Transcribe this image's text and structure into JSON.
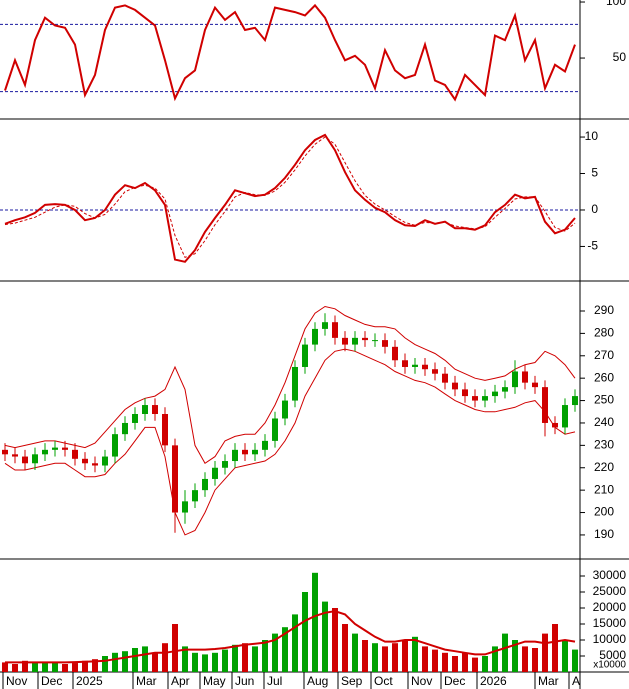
{
  "chart_data": [
    {
      "type": "line",
      "ylim": [
        -3.5,
        101.8
      ],
      "yticks": [
        50,
        100
      ],
      "levels": [
        80,
        20
      ],
      "level_color": "#1a1aa0",
      "series": [
        {
          "color": "#d00000",
          "values": [
            21,
            48,
            26,
            66,
            86,
            79,
            77,
            62,
            17,
            35,
            75,
            95,
            97,
            93,
            86,
            79,
            48,
            14,
            32,
            39,
            75,
            95,
            84,
            91,
            75,
            77,
            66,
            95,
            93,
            91,
            88,
            97,
            86,
            66,
            48,
            52,
            44,
            23,
            57,
            39,
            32,
            35,
            62,
            30,
            26,
            13,
            35,
            26,
            17,
            70,
            66,
            88,
            48,
            66,
            23,
            44,
            38,
            62
          ]
        }
      ]
    },
    {
      "type": "line",
      "ylim": [
        -9.6,
        12.2
      ],
      "yticks": [
        -5,
        0,
        5,
        10
      ],
      "levels": [
        0
      ],
      "level_color": "#1a1aa0",
      "series": [
        {
          "color": "#d00000",
          "values": [
            -1.9,
            -1.4,
            -1.0,
            -0.4,
            0.7,
            0.8,
            0.7,
            0,
            -1.4,
            -1.1,
            0,
            2.1,
            3.4,
            3.0,
            3.7,
            2.7,
            0.7,
            -6.8,
            -7.1,
            -5.5,
            -3.0,
            -1.1,
            0.7,
            2.7,
            2.3,
            1.9,
            2.1,
            3.0,
            4.4,
            6.2,
            8.2,
            9.6,
            10.3,
            8.2,
            5.2,
            2.7,
            1.4,
            0.3,
            -0.3,
            -1.4,
            -2.1,
            -2.2,
            -1.4,
            -1.9,
            -1.6,
            -2.5,
            -2.5,
            -2.7,
            -2.1,
            -0.3,
            0.7,
            2.1,
            1.6,
            1.8,
            -1.6,
            -3.2,
            -2.7,
            -1.1
          ]
        },
        {
          "color": "#d00000",
          "dashed": true,
          "values": [
            -2.0,
            -1.8,
            -1.4,
            -1.0,
            -0.3,
            0.4,
            0.7,
            0.5,
            -0.5,
            -1.1,
            -0.6,
            0.8,
            2.5,
            3.1,
            3.4,
            3.0,
            1.5,
            -3.5,
            -6.5,
            -6.0,
            -4.2,
            -2.0,
            -0.2,
            1.8,
            2.4,
            2.1,
            2.0,
            2.6,
            3.8,
            5.5,
            7.4,
            9.0,
            10.0,
            9.0,
            6.5,
            4.0,
            2.0,
            0.8,
            0.0,
            -0.9,
            -1.7,
            -2.1,
            -1.7,
            -1.8,
            -1.7,
            -2.2,
            -2.4,
            -2.6,
            -2.3,
            -1.0,
            0.2,
            1.5,
            1.8,
            1.8,
            -0.2,
            -2.4,
            -2.9,
            -1.8
          ]
        }
      ]
    },
    {
      "type": "candlestick",
      "ylim": [
        179.7,
        302.5
      ],
      "yticks": [
        190,
        200,
        210,
        220,
        230,
        240,
        250,
        260,
        270,
        280,
        290
      ],
      "up_color": "#00a000",
      "down_color": "#d00000",
      "open": [
        228,
        226,
        225,
        222,
        226,
        228,
        229,
        228,
        224,
        222,
        221,
        225,
        235,
        240,
        244,
        248,
        244,
        230,
        200,
        205,
        210,
        215,
        220,
        223,
        228,
        226,
        228,
        232,
        242,
        250,
        265,
        275,
        282,
        285,
        278,
        275,
        278,
        277,
        277,
        274,
        268,
        265,
        266,
        264,
        262,
        258,
        255,
        252,
        250,
        252,
        254,
        256,
        263,
        258,
        256,
        240,
        238,
        248
      ],
      "high": [
        231,
        229,
        228,
        229,
        231,
        232,
        232,
        231,
        227,
        225,
        228,
        238,
        243,
        247,
        251,
        251,
        247,
        233,
        210,
        213,
        218,
        223,
        226,
        231,
        231,
        231,
        235,
        245,
        253,
        268,
        278,
        285,
        289,
        288,
        281,
        281,
        281,
        280,
        280,
        277,
        271,
        269,
        269,
        267,
        265,
        261,
        258,
        255,
        255,
        257,
        259,
        268,
        266,
        261,
        259,
        243,
        251,
        255
      ],
      "low": [
        223,
        222,
        219,
        219,
        223,
        225,
        225,
        221,
        219,
        218,
        218,
        222,
        232,
        237,
        241,
        241,
        227,
        191,
        195,
        202,
        207,
        212,
        217,
        220,
        223,
        223,
        225,
        229,
        239,
        247,
        262,
        272,
        279,
        275,
        272,
        272,
        274,
        274,
        271,
        265,
        262,
        262,
        261,
        259,
        255,
        252,
        249,
        247,
        247,
        249,
        251,
        253,
        255,
        253,
        234,
        235,
        235,
        245
      ],
      "close": [
        226,
        225,
        222,
        226,
        228,
        229,
        228,
        224,
        222,
        221,
        225,
        235,
        240,
        244,
        248,
        244,
        230,
        200,
        205,
        210,
        215,
        220,
        223,
        228,
        226,
        228,
        232,
        242,
        250,
        265,
        275,
        282,
        285,
        278,
        275,
        278,
        277,
        277,
        274,
        268,
        265,
        266,
        264,
        262,
        258,
        255,
        252,
        250,
        252,
        254,
        256,
        263,
        258,
        256,
        240,
        238,
        248,
        252
      ],
      "bands": {
        "color": "#d00000",
        "upper": [
          230,
          229,
          230,
          231,
          232,
          232,
          231,
          230,
          229,
          231,
          236,
          241,
          246,
          249,
          251,
          252,
          255,
          265,
          255,
          230,
          222,
          225,
          232,
          234,
          235,
          235,
          240,
          248,
          258,
          270,
          282,
          289,
          292,
          291,
          288,
          286,
          284,
          283,
          283,
          282,
          278,
          275,
          273,
          271,
          268,
          264,
          262,
          260,
          259,
          260,
          261,
          264,
          266,
          267,
          272,
          270,
          266,
          260
        ],
        "lower": [
          222,
          219,
          219,
          220,
          221,
          222,
          222,
          219,
          216,
          216,
          217,
          222,
          226,
          232,
          238,
          238,
          225,
          200,
          190,
          192,
          200,
          210,
          215,
          220,
          221,
          222,
          223,
          226,
          232,
          240,
          252,
          260,
          268,
          272,
          273,
          272,
          270,
          268,
          266,
          263,
          261,
          259,
          258,
          256,
          253,
          250,
          248,
          246,
          245,
          245,
          246,
          247,
          249,
          250,
          245,
          238,
          235,
          236
        ]
      }
    },
    {
      "type": "bar",
      "ylim": [
        0,
        35000
      ],
      "yticks": [
        5000,
        10000,
        15000,
        20000,
        25000,
        30000
      ],
      "unit_label": "x10000",
      "up_color": "#00a000",
      "down_color": "#d00000",
      "values": [
        3000,
        2500,
        3500,
        2800,
        3000,
        3200,
        2500,
        2800,
        3500,
        4000,
        5000,
        6000,
        6500,
        7500,
        8000,
        6000,
        9000,
        15000,
        8000,
        6000,
        5500,
        6000,
        7000,
        8500,
        9000,
        8000,
        10000,
        12000,
        14000,
        18000,
        25000,
        31000,
        22000,
        20000,
        15000,
        12000,
        10000,
        9000,
        8000,
        9000,
        10000,
        11000,
        8000,
        7000,
        6000,
        5000,
        6000,
        4500,
        5000,
        8000,
        12000,
        10000,
        8000,
        7500,
        12000,
        15000,
        10000,
        7000
      ],
      "ma": {
        "color": "#d00000",
        "values": [
          3000,
          3000,
          3000,
          3000,
          3000,
          3000,
          3000,
          3100,
          3200,
          3300,
          3500,
          4000,
          4500,
          5000,
          5500,
          6000,
          6000,
          6500,
          7000,
          7000,
          7000,
          7200,
          7500,
          8000,
          8500,
          8800,
          9200,
          10000,
          12000,
          14000,
          16000,
          17500,
          18500,
          19000,
          18000,
          15000,
          13000,
          11000,
          9500,
          9500,
          10000,
          10000,
          9000,
          8000,
          7000,
          6500,
          6000,
          5500,
          5500,
          6500,
          7500,
          8500,
          9500,
          9500,
          9000,
          9500,
          10000,
          9500
        ]
      },
      "xlim": [
        0,
        58
      ],
      "xticks": [
        {
          "value": 0.3,
          "label": "Nov"
        },
        {
          "value": 3.8,
          "label": "Dec"
        },
        {
          "value": 7.3,
          "label": "2025"
        },
        {
          "value": 13.3,
          "label": "Mar"
        },
        {
          "value": 16.8,
          "label": "Apr"
        },
        {
          "value": 20.0,
          "label": "May"
        },
        {
          "value": 23.2,
          "label": "Jun"
        },
        {
          "value": 26.4,
          "label": "Jul"
        },
        {
          "value": 30.4,
          "label": "Aug"
        },
        {
          "value": 33.8,
          "label": "Sep"
        },
        {
          "value": 37.1,
          "label": "Oct"
        },
        {
          "value": 40.8,
          "label": "Nov"
        },
        {
          "value": 44.1,
          "label": "Dec"
        },
        {
          "value": 47.7,
          "label": "2026"
        },
        {
          "value": 53.5,
          "label": "Mar"
        },
        {
          "value": 56.9,
          "label": "A"
        }
      ]
    }
  ]
}
